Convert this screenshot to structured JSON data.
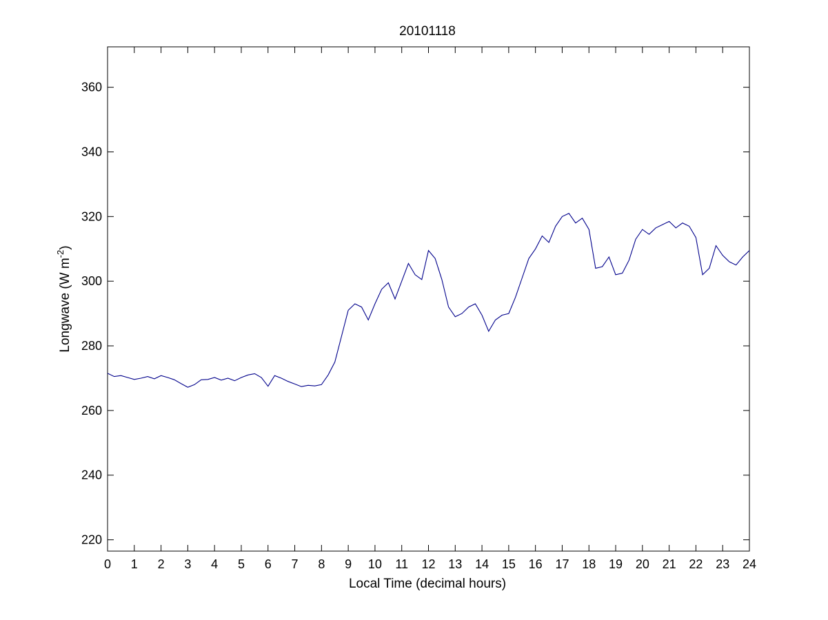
{
  "chart_data": {
    "type": "line",
    "title": "20101118",
    "xlabel": "Local Time (decimal hours)",
    "ylabel": {
      "base": "Longwave (W m",
      "superscript": "-2",
      "close": ")"
    },
    "xlim": [
      0,
      24
    ],
    "ylim": [
      216.5,
      372.5
    ],
    "xticks": [
      0,
      1,
      2,
      3,
      4,
      5,
      6,
      7,
      8,
      9,
      10,
      11,
      12,
      13,
      14,
      15,
      16,
      17,
      18,
      19,
      20,
      21,
      22,
      23,
      24
    ],
    "yticks": [
      220,
      240,
      260,
      280,
      300,
      320,
      340,
      360
    ],
    "grid": false,
    "legend": "none",
    "line_color": "#00008b",
    "series": [
      {
        "x": [
          0,
          0.25,
          0.5,
          0.75,
          1,
          1.25,
          1.5,
          1.75,
          2,
          2.25,
          2.5,
          2.75,
          3,
          3.25,
          3.5,
          3.75,
          4,
          4.25,
          4.5,
          4.75,
          5,
          5.25,
          5.5,
          5.75,
          6,
          6.25,
          6.5,
          6.75,
          7,
          7.25,
          7.5,
          7.75,
          8,
          8.25,
          8.5,
          8.75,
          9,
          9.25,
          9.5,
          9.75,
          10,
          10.25,
          10.5,
          10.75,
          11,
          11.25,
          11.5,
          11.75,
          12,
          12.25,
          12.5,
          12.75,
          13,
          13.25,
          13.5,
          13.75,
          14,
          14.25,
          14.5,
          14.75,
          15,
          15.25,
          15.5,
          15.75,
          16,
          16.25,
          16.5,
          16.75,
          17,
          17.25,
          17.5,
          17.75,
          18,
          18.25,
          18.5,
          18.75,
          19,
          19.25,
          19.5,
          19.75,
          20,
          20.25,
          20.5,
          20.75,
          21,
          21.25,
          21.5,
          21.75,
          22,
          22.25,
          22.5,
          22.75,
          23,
          23.25,
          23.5,
          23.75,
          24
        ],
        "y": [
          271.5,
          270.5,
          270.8,
          270.2,
          269.6,
          270.0,
          270.5,
          269.8,
          270.8,
          270.2,
          269.5,
          268.3,
          267.2,
          268.0,
          269.5,
          269.6,
          270.2,
          269.4,
          270.0,
          269.2,
          270.2,
          271.0,
          271.4,
          270.2,
          267.5,
          270.8,
          270.0,
          269.0,
          268.2,
          267.4,
          267.8,
          267.6,
          268.0,
          271.0,
          275.0,
          283.0,
          291.0,
          293.0,
          292.0,
          288.0,
          293.0,
          297.5,
          299.5,
          294.5,
          300.0,
          305.5,
          302.0,
          300.5,
          309.5,
          307.0,
          300.5,
          292.0,
          289.0,
          290.0,
          292.0,
          293.0,
          289.5,
          284.5,
          288.0,
          289.5,
          290.0,
          295.0,
          301.0,
          307.0,
          310.0,
          314.0,
          312.0,
          317.0,
          320.0,
          321.0,
          318.0,
          319.5,
          316.0,
          304.0,
          304.5,
          307.5,
          302.0,
          302.5,
          306.5,
          313.0,
          316.0,
          314.5,
          316.5,
          317.5,
          318.5,
          316.5,
          318.0,
          317.0,
          313.5,
          302.0,
          304.0,
          311.0,
          308.0,
          306.0,
          305.0,
          307.5,
          309.5
        ]
      }
    ]
  }
}
